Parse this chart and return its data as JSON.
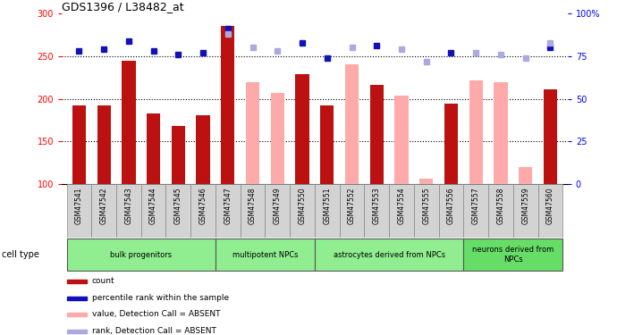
{
  "title": "GDS1396 / L38482_at",
  "samples": [
    "GSM47541",
    "GSM47542",
    "GSM47543",
    "GSM47544",
    "GSM47545",
    "GSM47546",
    "GSM47547",
    "GSM47548",
    "GSM47549",
    "GSM47550",
    "GSM47551",
    "GSM47552",
    "GSM47553",
    "GSM47554",
    "GSM47555",
    "GSM47556",
    "GSM47557",
    "GSM47558",
    "GSM47559",
    "GSM47560"
  ],
  "count_values": [
    192,
    192,
    245,
    183,
    168,
    181,
    285,
    null,
    null,
    229,
    192,
    null,
    216,
    null,
    null,
    194,
    null,
    null,
    null,
    211
  ],
  "count_absent_values": [
    null,
    null,
    null,
    null,
    null,
    null,
    null,
    220,
    207,
    null,
    null,
    240,
    null,
    204,
    107,
    null,
    222,
    220,
    120,
    null
  ],
  "rank_present_values": [
    78,
    79,
    84,
    78,
    76,
    77,
    91,
    null,
    null,
    83,
    74,
    null,
    81,
    null,
    null,
    77,
    null,
    null,
    null,
    80
  ],
  "rank_absent_values": [
    null,
    null,
    null,
    null,
    null,
    null,
    88,
    80,
    78,
    null,
    null,
    80,
    null,
    79,
    72,
    null,
    77,
    76,
    74,
    83
  ],
  "ylim_left": [
    100,
    300
  ],
  "ylim_right": [
    0,
    100
  ],
  "yticks_left": [
    100,
    150,
    200,
    250,
    300
  ],
  "yticks_right": [
    0,
    25,
    50,
    75,
    100
  ],
  "ytick_labels_right": [
    "0",
    "25",
    "50",
    "75",
    "100%"
  ],
  "color_count": "#BB1111",
  "color_rank": "#1111BB",
  "color_count_absent": "#FFAAAA",
  "color_rank_absent": "#AAAADD",
  "groups": [
    {
      "label": "bulk progenitors",
      "start": 0,
      "end": 5,
      "color": "#90EE90"
    },
    {
      "label": "multipotent NPCs",
      "start": 6,
      "end": 9,
      "color": "#90EE90"
    },
    {
      "label": "astrocytes derived from NPCs",
      "start": 10,
      "end": 15,
      "color": "#90EE90"
    },
    {
      "label": "neurons derived from\nNPCs",
      "start": 16,
      "end": 19,
      "color": "#66DD66"
    }
  ],
  "legend_items": [
    {
      "label": "count",
      "color": "#BB1111"
    },
    {
      "label": "percentile rank within the sample",
      "color": "#1111BB"
    },
    {
      "label": "value, Detection Call = ABSENT",
      "color": "#FFAAAA"
    },
    {
      "label": "rank, Detection Call = ABSENT",
      "color": "#AAAADD"
    }
  ],
  "bar_width": 0.55,
  "grid_lines": [
    150,
    200,
    250
  ],
  "xtick_bg_color": "#d3d3d3"
}
